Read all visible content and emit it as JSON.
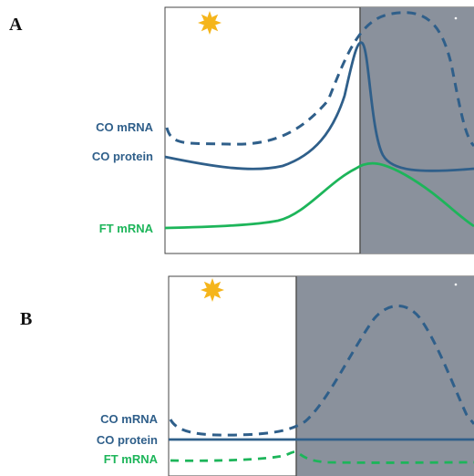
{
  "colors": {
    "co": "#2f5f8a",
    "ft": "#1db55a",
    "night": "#8a919c",
    "sun": "#f5b51b",
    "moon": "#ffffff",
    "frame": "#444444"
  },
  "icons": {
    "day": "sun-icon",
    "night": "moon-icon"
  },
  "panels": [
    {
      "letter": "A",
      "labels": {
        "co_mrna": "CO mRNA",
        "co_protein": "CO protein",
        "ft_mrna": "FT mRNA"
      },
      "day_fraction": 0.62,
      "ft_line_style": "solid",
      "co_protein_shape": "peaks at dusk, then drops sharply at night"
    },
    {
      "letter": "B",
      "labels": {
        "co_mrna": "CO mRNA",
        "co_protein": "CO protein",
        "ft_mrna": "FT mRNA"
      },
      "day_fraction": 0.42,
      "ft_line_style": "dashed",
      "co_protein_shape": "flat"
    }
  ]
}
